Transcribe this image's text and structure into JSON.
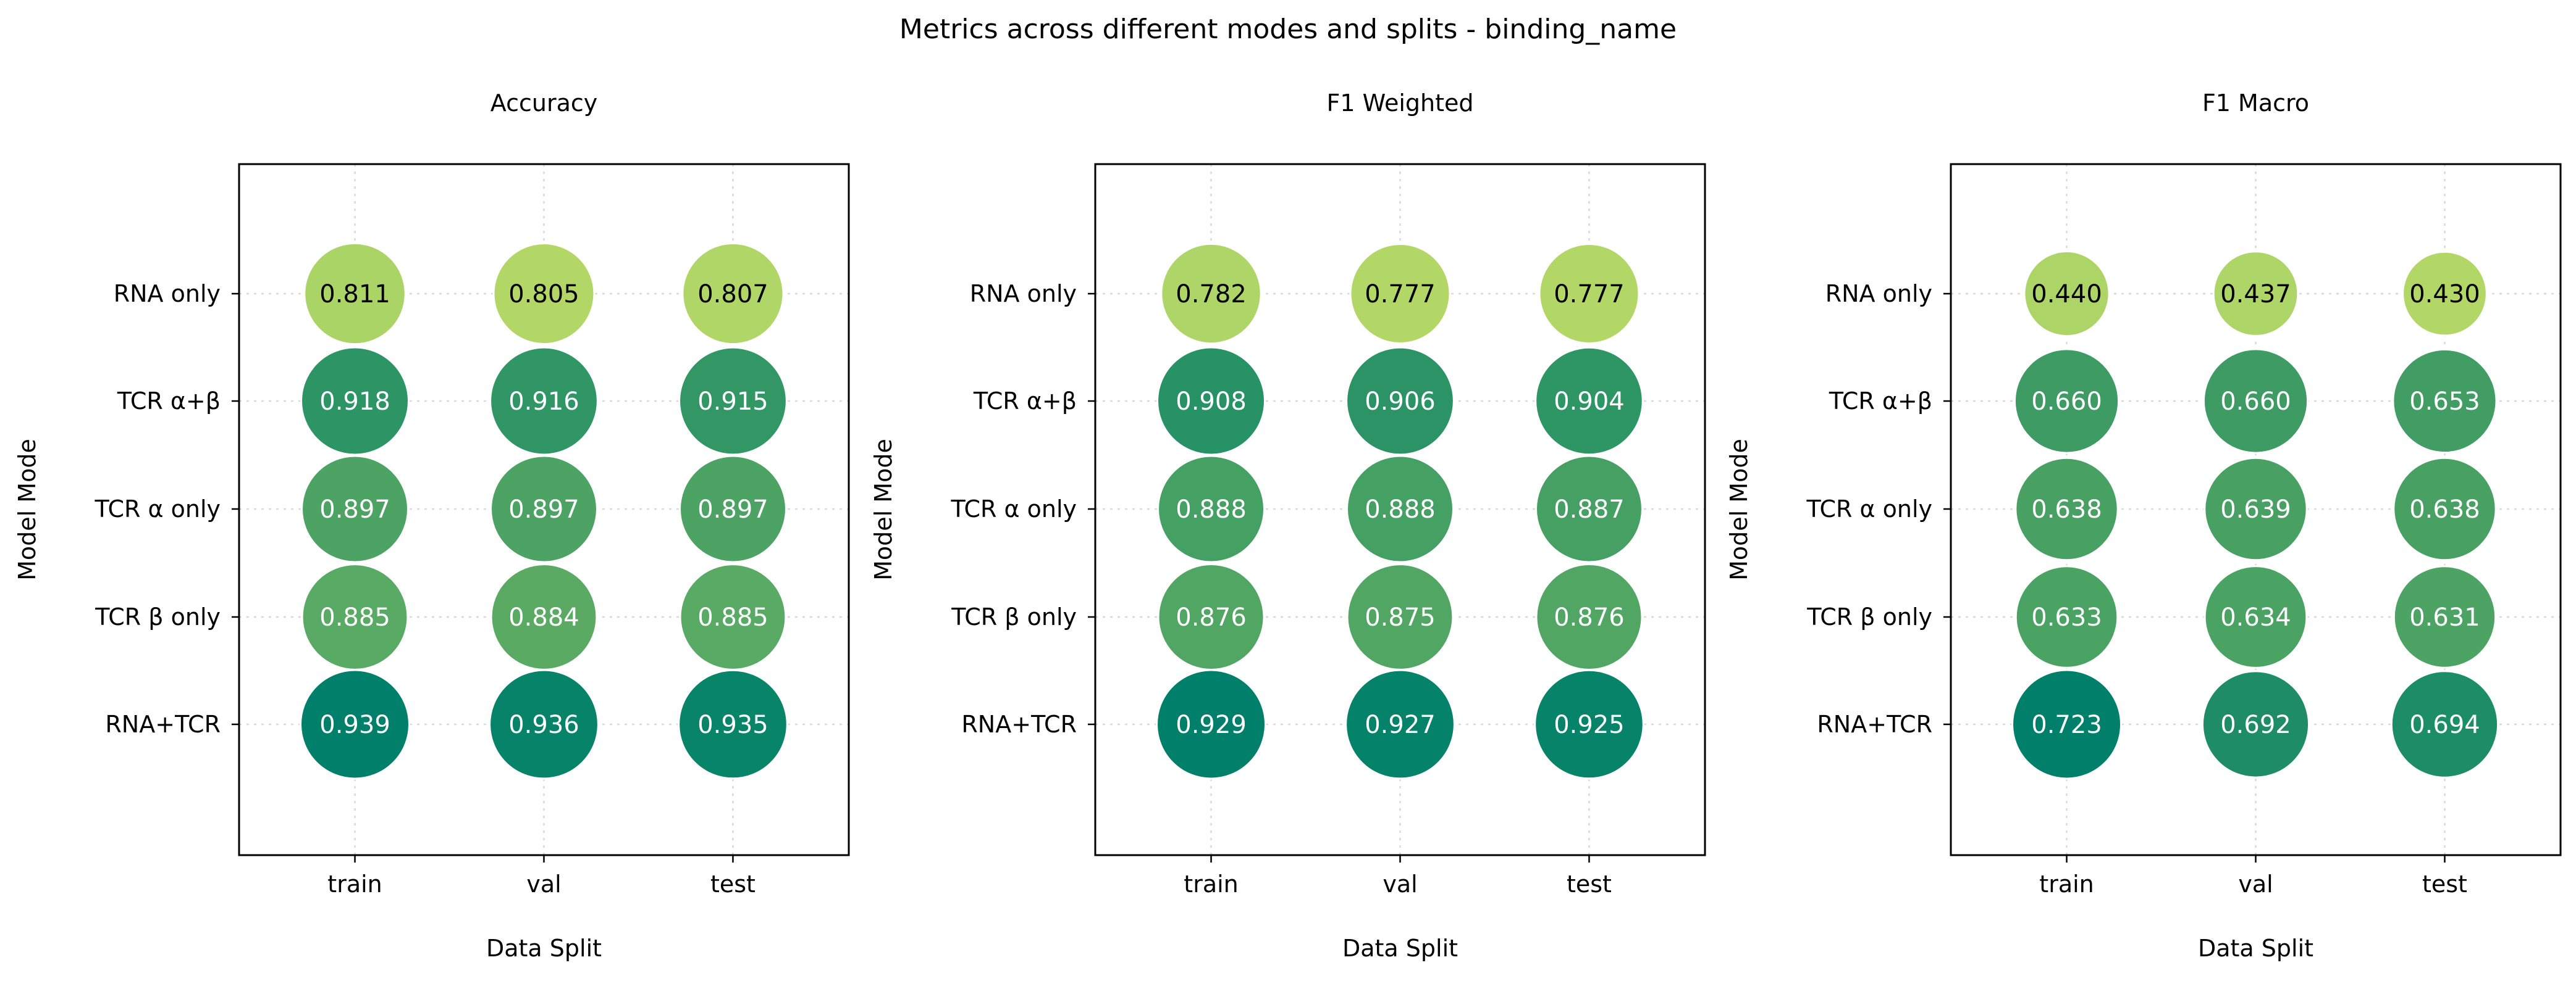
{
  "figure": {
    "title": "Metrics across different modes and splits - binding_name"
  },
  "colors": {
    "low": "#b2d767",
    "mid": "#3e9c63",
    "high": "#00806a",
    "frame": "#000000",
    "grid": "#d9d9d9",
    "label_dark": "#000000",
    "label_light": "#ffffff"
  },
  "chart_data": [
    {
      "type": "scatter",
      "title": "Accuracy",
      "xlabel": "Data Split",
      "ylabel": "Model Mode",
      "categories": [
        "train",
        "val",
        "test"
      ],
      "rows": [
        "RNA only",
        "TCR α+β",
        "TCR α only",
        "TCR β only",
        "RNA+TCR"
      ],
      "values": [
        [
          0.811,
          0.805,
          0.807
        ],
        [
          0.918,
          0.916,
          0.915
        ],
        [
          0.897,
          0.897,
          0.897
        ],
        [
          0.885,
          0.884,
          0.885
        ],
        [
          0.939,
          0.936,
          0.935
        ]
      ],
      "grid": true,
      "marker_size_encodes_value": true
    },
    {
      "type": "scatter",
      "title": "F1 Weighted",
      "xlabel": "Data Split",
      "ylabel": "Model Mode",
      "categories": [
        "train",
        "val",
        "test"
      ],
      "rows": [
        "RNA only",
        "TCR α+β",
        "TCR α only",
        "TCR β only",
        "RNA+TCR"
      ],
      "values": [
        [
          0.782,
          0.777,
          0.777
        ],
        [
          0.908,
          0.906,
          0.904
        ],
        [
          0.888,
          0.888,
          0.887
        ],
        [
          0.876,
          0.875,
          0.876
        ],
        [
          0.929,
          0.927,
          0.925
        ]
      ],
      "grid": true,
      "marker_size_encodes_value": true
    },
    {
      "type": "scatter",
      "title": "F1 Macro",
      "xlabel": "Data Split",
      "ylabel": "Model Mode",
      "categories": [
        "train",
        "val",
        "test"
      ],
      "rows": [
        "RNA only",
        "TCR α+β",
        "TCR α only",
        "TCR β only",
        "RNA+TCR"
      ],
      "values": [
        [
          0.44,
          0.437,
          0.43
        ],
        [
          0.66,
          0.66,
          0.653
        ],
        [
          0.638,
          0.639,
          0.638
        ],
        [
          0.633,
          0.634,
          0.631
        ],
        [
          0.723,
          0.692,
          0.694
        ]
      ],
      "grid": true,
      "marker_size_encodes_value": true
    }
  ]
}
